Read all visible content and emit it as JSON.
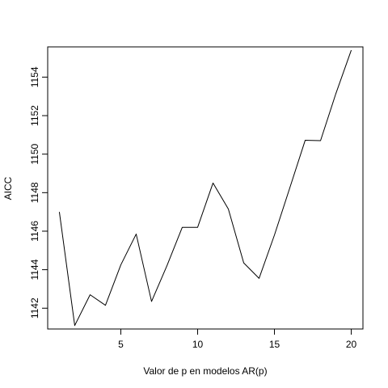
{
  "chart_data": {
    "type": "line",
    "title": "",
    "xlabel": "Valor de p en modelos AR(p)",
    "ylabel": "AICC",
    "xlim": [
      0.24,
      20.76
    ],
    "ylim": [
      1140.92,
      1155.57
    ],
    "xticks": [
      5,
      10,
      15,
      20
    ],
    "xtick_labels": [
      "5",
      "10",
      "15",
      "20"
    ],
    "yticks": [
      1142,
      1144,
      1146,
      1148,
      1150,
      1152,
      1154
    ],
    "ytick_labels": [
      "1142",
      "1144",
      "1146",
      "1148",
      "1150",
      "1152",
      "1154"
    ],
    "grid": false,
    "legend": "none",
    "series": [
      {
        "color": "#000000",
        "x": [
          1,
          2,
          3,
          4,
          5,
          6,
          7,
          8,
          9,
          10,
          11,
          12,
          13,
          14,
          15,
          16,
          17,
          18,
          19,
          20
        ],
        "y": [
          1147.0,
          1141.1,
          1142.7,
          1142.15,
          1144.25,
          1145.85,
          1142.35,
          1144.2,
          1146.2,
          1146.2,
          1148.5,
          1147.15,
          1144.35,
          1143.55,
          1145.8,
          1148.25,
          1150.72,
          1150.7,
          1153.15,
          1155.4
        ]
      }
    ]
  }
}
